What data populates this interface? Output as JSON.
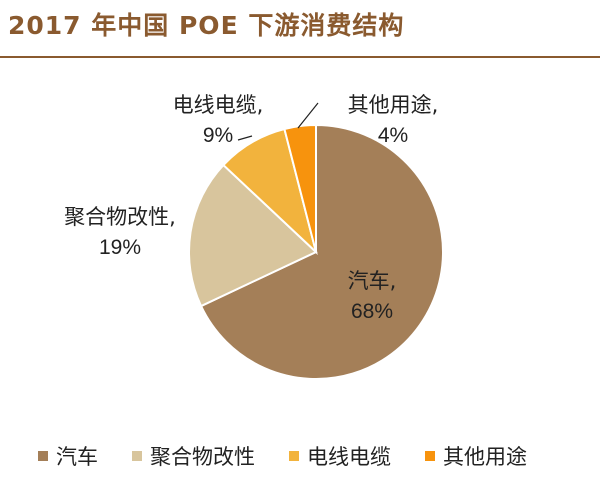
{
  "title": "2017 年中国 POE 下游消费结构",
  "chart_data": {
    "type": "pie",
    "title": "2017 年中国 POE 下游消费结构",
    "legend_position": "bottom",
    "slices": [
      {
        "label": "汽车",
        "value": 68,
        "value_label": "68%",
        "color": "#a47f58"
      },
      {
        "label": "聚合物改性",
        "value": 19,
        "value_label": "19%",
        "color": "#d8c59d"
      },
      {
        "label": "电线电缆",
        "value": 9,
        "value_label": "9%",
        "color": "#f2b33d"
      },
      {
        "label": "其他用途",
        "value": 4,
        "value_label": "4%",
        "color": "#f7930d"
      }
    ]
  }
}
